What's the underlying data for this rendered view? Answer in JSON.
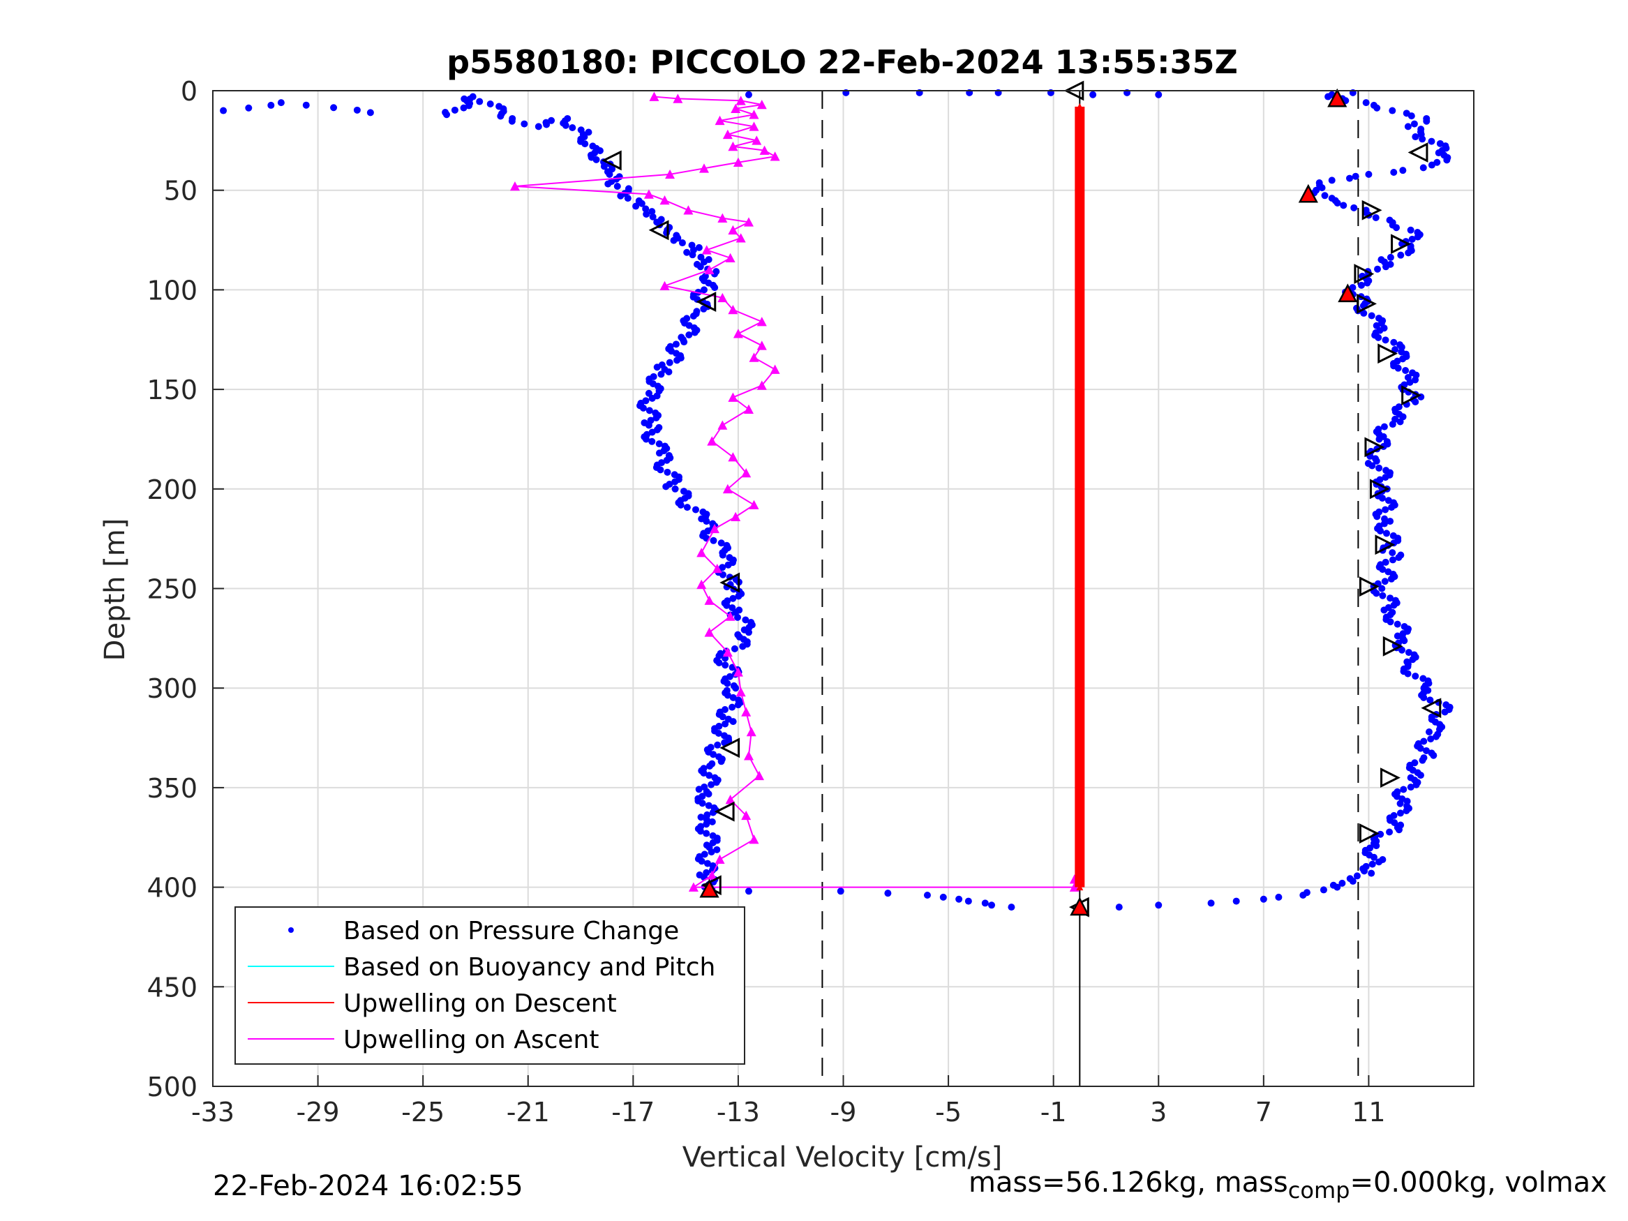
{
  "chart_data": {
    "type": "scatter",
    "title": "p5580180: PICCOLO 22-Feb-2024 13:55:35Z",
    "xlabel": "Vertical Velocity [cm/s]",
    "ylabel": "Depth [m]",
    "xlim": [
      -33,
      15
    ],
    "ylim": [
      0,
      500
    ],
    "y_reversed": true,
    "grid": true,
    "xticks": [
      "-33",
      "-29",
      "-25",
      "-21",
      "-17",
      "-13",
      "-9",
      "-5",
      "-1",
      "3",
      "7",
      "11"
    ],
    "yticks": [
      "0",
      "50",
      "100",
      "150",
      "200",
      "250",
      "300",
      "350",
      "400",
      "450",
      "500"
    ],
    "legend_position": "bottom-left",
    "legend": [
      {
        "label": "Based on Pressure Change",
        "color": "#0000ff",
        "marker": "dot"
      },
      {
        "label": "Based on Buoyancy and Pitch",
        "color": "#00ffff",
        "marker": "line"
      },
      {
        "label": "Upwelling on Descent",
        "color": "#ff0000",
        "marker": "line"
      },
      {
        "label": "Upwelling on Ascent",
        "color": "#ff00ff",
        "marker": "line"
      }
    ],
    "reference_lines": [
      {
        "x": -9.8,
        "style": "dashed",
        "color": "#000000"
      },
      {
        "x": 10.6,
        "style": "dashed",
        "color": "#000000"
      },
      {
        "x": 0,
        "style": "solid",
        "color": "#000000"
      }
    ],
    "series": [
      {
        "name": "Based on Pressure Change (descent)",
        "color": "#0000ff",
        "points": [
          [
            -32.6,
            10
          ],
          [
            -30.4,
            6
          ],
          [
            -27,
            11
          ],
          [
            -24.1,
            12
          ],
          [
            -23.1,
            3
          ],
          [
            -21.6,
            14
          ],
          [
            -20.6,
            18
          ],
          [
            -20.3,
            17
          ],
          [
            -19.5,
            14
          ],
          [
            -18.9,
            22
          ],
          [
            -18.4,
            29
          ],
          [
            -18.1,
            38
          ],
          [
            -17.9,
            42
          ],
          [
            -17.6,
            48
          ],
          [
            -17.2,
            54
          ],
          [
            -16.9,
            58
          ],
          [
            -16.5,
            62
          ],
          [
            -16.1,
            66
          ],
          [
            -15.7,
            70
          ],
          [
            -15.3,
            74
          ],
          [
            -14.7,
            80
          ],
          [
            -14.3,
            86
          ],
          [
            -13.9,
            92
          ],
          [
            -14.3,
            100
          ],
          [
            -14.6,
            112
          ],
          [
            -15.1,
            125
          ],
          [
            -15.8,
            140
          ],
          [
            -16.4,
            152
          ],
          [
            -16.4,
            168
          ],
          [
            -16.0,
            182
          ],
          [
            -15.4,
            200
          ],
          [
            -14.4,
            215
          ],
          [
            -13.6,
            232
          ],
          [
            -13.3,
            248
          ],
          [
            -13.1,
            262
          ],
          [
            -12.6,
            272
          ],
          [
            -13.5,
            285
          ],
          [
            -13.1,
            300
          ],
          [
            -13.5,
            318
          ],
          [
            -14.0,
            338
          ],
          [
            -14.2,
            352
          ],
          [
            -14.2,
            366
          ],
          [
            -14.1,
            380
          ],
          [
            -14.3,
            395
          ],
          [
            -14.0,
            401
          ],
          [
            -12.6,
            402
          ],
          [
            -9.1,
            402
          ],
          [
            -5.8,
            404
          ],
          [
            -4.6,
            406
          ],
          [
            -3.6,
            408
          ],
          [
            -2.6,
            410
          ]
        ]
      },
      {
        "name": "Based on Pressure Change (ascent)",
        "color": "#0000ff",
        "points": [
          [
            1.5,
            410
          ],
          [
            3,
            409
          ],
          [
            5,
            408
          ],
          [
            7,
            406
          ],
          [
            8.5,
            404
          ],
          [
            9.8,
            400
          ],
          [
            10.4,
            397
          ],
          [
            11.1,
            393
          ],
          [
            11.2,
            385
          ],
          [
            11.2,
            378
          ],
          [
            12.1,
            370
          ],
          [
            12.2,
            358
          ],
          [
            12.6,
            345
          ],
          [
            13.1,
            335
          ],
          [
            13.3,
            322
          ],
          [
            13.9,
            312
          ],
          [
            13.1,
            300
          ],
          [
            12.5,
            288
          ],
          [
            12.3,
            275
          ],
          [
            11.9,
            262
          ],
          [
            11.5,
            250
          ],
          [
            11.9,
            232
          ],
          [
            11.6,
            215
          ],
          [
            11.7,
            200
          ],
          [
            11.3,
            186
          ],
          [
            11.4,
            175
          ],
          [
            12.0,
            165
          ],
          [
            12.7,
            155
          ],
          [
            12.5,
            144
          ],
          [
            12.0,
            130
          ],
          [
            11.3,
            118
          ],
          [
            10.8,
            108
          ],
          [
            10.3,
            100
          ],
          [
            11.0,
            92
          ],
          [
            11.6,
            86
          ],
          [
            12.6,
            78
          ],
          [
            12.6,
            70
          ],
          [
            11.8,
            65
          ],
          [
            10.9,
            60
          ],
          [
            9.6,
            54
          ],
          [
            9.0,
            50
          ],
          [
            9.6,
            45
          ],
          [
            11.0,
            42
          ],
          [
            12.3,
            40
          ],
          [
            13.6,
            36
          ],
          [
            13.8,
            30
          ],
          [
            13.0,
            22
          ],
          [
            12.5,
            18
          ],
          [
            13.2,
            14
          ],
          [
            11.9,
            10
          ],
          [
            10.9,
            6
          ],
          [
            10.0,
            4
          ],
          [
            9.6,
            2
          ],
          [
            10.4,
            1
          ]
        ]
      },
      {
        "name": "Surface points",
        "color": "#0000ff",
        "points": [
          [
            -12.6,
            2
          ],
          [
            -8.9,
            1
          ],
          [
            -6.1,
            1
          ],
          [
            -4.2,
            1
          ],
          [
            -3.1,
            1
          ],
          [
            -1.1,
            1
          ],
          [
            0.5,
            2
          ],
          [
            1.8,
            1
          ],
          [
            3.0,
            2
          ]
        ]
      },
      {
        "name": "Upwelling on Ascent",
        "color": "#ff00ff",
        "marker": "triangle",
        "points": [
          [
            -16.2,
            3
          ],
          [
            -15.3,
            4
          ],
          [
            -12.9,
            5
          ],
          [
            -12.1,
            7
          ],
          [
            -13.1,
            9
          ],
          [
            -12.4,
            12
          ],
          [
            -13.7,
            15
          ],
          [
            -12.4,
            18
          ],
          [
            -13.4,
            22
          ],
          [
            -12.3,
            25
          ],
          [
            -13.2,
            28
          ],
          [
            -12.0,
            30
          ],
          [
            -11.6,
            33
          ],
          [
            -13.0,
            36
          ],
          [
            -14.3,
            39
          ],
          [
            -15.6,
            42
          ],
          [
            -21.5,
            48
          ],
          [
            -16.4,
            52
          ],
          [
            -15.8,
            55
          ],
          [
            -14.9,
            60
          ],
          [
            -13.6,
            64
          ],
          [
            -12.6,
            66
          ],
          [
            -13.2,
            70
          ],
          [
            -12.9,
            74
          ],
          [
            -14.2,
            80
          ],
          [
            -13.3,
            84
          ],
          [
            -14.1,
            90
          ],
          [
            -15.8,
            98
          ],
          [
            -13.6,
            104
          ],
          [
            -13.2,
            110
          ],
          [
            -12.1,
            116
          ],
          [
            -13.0,
            122
          ],
          [
            -12.1,
            128
          ],
          [
            -12.4,
            134
          ],
          [
            -11.6,
            140
          ],
          [
            -12.1,
            148
          ],
          [
            -13.2,
            154
          ],
          [
            -12.6,
            160
          ],
          [
            -13.6,
            168
          ],
          [
            -14.0,
            176
          ],
          [
            -13.2,
            184
          ],
          [
            -12.7,
            192
          ],
          [
            -13.4,
            200
          ],
          [
            -12.4,
            208
          ],
          [
            -13.1,
            214
          ],
          [
            -13.9,
            220
          ],
          [
            -14.4,
            232
          ],
          [
            -13.8,
            240
          ],
          [
            -14.4,
            248
          ],
          [
            -14.1,
            256
          ],
          [
            -13.3,
            264
          ],
          [
            -14.1,
            272
          ],
          [
            -13.4,
            282
          ],
          [
            -13.0,
            292
          ],
          [
            -12.9,
            302
          ],
          [
            -12.7,
            312
          ],
          [
            -12.5,
            322
          ],
          [
            -12.6,
            334
          ],
          [
            -12.2,
            344
          ],
          [
            -13.3,
            356
          ],
          [
            -12.7,
            364
          ],
          [
            -12.4,
            376
          ],
          [
            -13.7,
            386
          ],
          [
            -14.0,
            394
          ],
          [
            -14.7,
            400
          ],
          [
            -0.2,
            400
          ],
          [
            -0.2,
            396
          ]
        ]
      },
      {
        "name": "Upwelling on Descent",
        "color": "#ff0000",
        "marker": "triangle",
        "points": [
          [
            0,
            8
          ],
          [
            0,
            400
          ]
        ]
      },
      {
        "name": "Turn markers",
        "color": "#000000",
        "marker": "triangle-open",
        "points": [
          [
            -17.8,
            35
          ],
          [
            -16.0,
            70
          ],
          [
            -14.2,
            106
          ],
          [
            -13.3,
            247
          ],
          [
            -13.3,
            330
          ],
          [
            -13.5,
            362
          ],
          [
            -14.0,
            399
          ],
          [
            -0.2,
            0
          ],
          [
            12.9,
            31
          ],
          [
            11.1,
            60
          ],
          [
            12.2,
            77
          ],
          [
            10.8,
            92
          ],
          [
            10.9,
            107
          ],
          [
            11.7,
            132
          ],
          [
            12.6,
            153
          ],
          [
            11.2,
            179
          ],
          [
            11.4,
            200
          ],
          [
            11.6,
            228
          ],
          [
            11.0,
            249
          ],
          [
            11.9,
            279
          ],
          [
            13.4,
            310
          ],
          [
            11.8,
            345
          ],
          [
            11.0,
            373
          ],
          [
            0,
            410
          ]
        ]
      },
      {
        "name": "Red markers",
        "color": "#ff0000",
        "marker": "triangle",
        "points": [
          [
            9.8,
            4
          ],
          [
            8.7,
            52
          ],
          [
            10.2,
            102
          ],
          [
            -14.1,
            401
          ],
          [
            0,
            410
          ]
        ]
      }
    ]
  },
  "footer": {
    "timestamp": "22-Feb-2024 16:02:55",
    "mass_prefix": "mass=56.126kg, mass",
    "mass_subscript": "comp",
    "mass_suffix": "=0.000kg, volmax"
  }
}
